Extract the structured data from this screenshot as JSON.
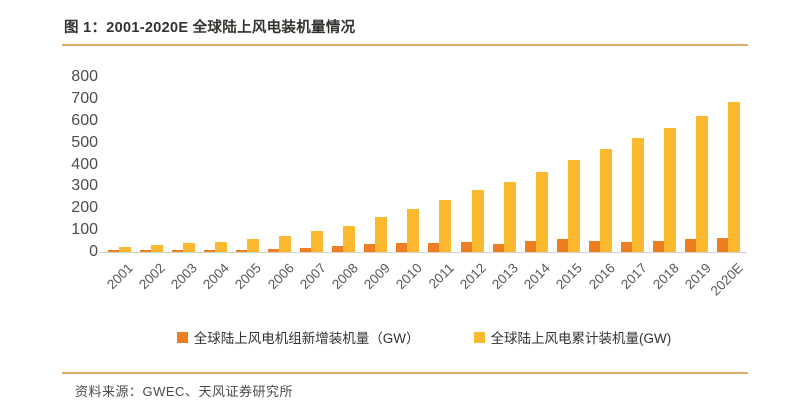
{
  "title": "图 1：2001-2020E 全球陆上风电装机量情况",
  "source": "资料来源：GWEC、天风证券研究所",
  "colors": {
    "new_installed": "#ee7e22",
    "cumulative": "#fab92f",
    "rule": "#e2aa63",
    "axis_text": "#595959",
    "baseline": "#d8cdc2"
  },
  "legend": [
    {
      "label": "全球陆上风电机组新增装机量（GW）",
      "series": "new_installed"
    },
    {
      "label": "全球陆上风电累计装机量(GW)",
      "series": "cumulative"
    }
  ],
  "chart_data": {
    "type": "bar",
    "title": "图 1：2001-2020E 全球陆上风电装机量情况",
    "xlabel": "",
    "ylabel": "",
    "ylim": [
      0,
      800
    ],
    "y_ticks": [
      0,
      100,
      200,
      300,
      400,
      500,
      600,
      700,
      800
    ],
    "grid": false,
    "legend_position": "bottom",
    "categories": [
      "2001",
      "2002",
      "2003",
      "2004",
      "2005",
      "2006",
      "2007",
      "2008",
      "2009",
      "2010",
      "2011",
      "2012",
      "2013",
      "2014",
      "2015",
      "2016",
      "2017",
      "2018",
      "2019",
      "2020E"
    ],
    "series": [
      {
        "name": "全球陆上风电机组新增装机量（GW）",
        "color": "#ee7e22",
        "values": [
          7,
          7,
          8,
          8,
          11,
          15,
          20,
          27,
          38,
          40,
          41,
          45,
          36,
          52,
          60,
          51,
          48,
          50,
          58,
          62
        ]
      },
      {
        "name": "全球陆上风电累计装机量(GW)",
        "color": "#fab92f",
        "values": [
          24,
          31,
          39,
          48,
          59,
          74,
          94,
          121,
          159,
          198,
          238,
          283,
          318,
          367,
          420,
          472,
          522,
          568,
          621,
          687
        ]
      }
    ]
  }
}
